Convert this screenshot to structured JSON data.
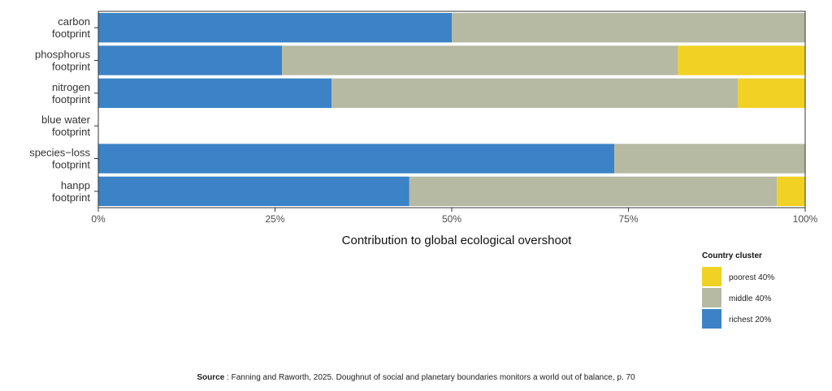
{
  "chart_data": {
    "type": "bar",
    "orientation": "horizontal",
    "stacked": true,
    "normalized": true,
    "categories": [
      [
        "carbon",
        "footprint"
      ],
      [
        "phosphorus",
        "footprint"
      ],
      [
        "nitrogen",
        "footprint"
      ],
      [
        "blue water",
        "footprint"
      ],
      [
        "species−loss",
        "footprint"
      ],
      [
        "hanpp",
        "footprint"
      ]
    ],
    "series": [
      {
        "name": "richest 20%",
        "color": "#3b83c6",
        "values": [
          50,
          26,
          33,
          0,
          73,
          44
        ]
      },
      {
        "name": "middle 40%",
        "color": "#b6baa3",
        "values": [
          50,
          56,
          57.5,
          0,
          27,
          52
        ]
      },
      {
        "name": "poorest 40%",
        "color": "#f1d124",
        "values": [
          0,
          18,
          9.5,
          0,
          0,
          4
        ]
      }
    ],
    "xlim": [
      0,
      100
    ],
    "xticks": [
      0,
      25,
      50,
      75,
      100
    ],
    "xtick_labels": [
      "0%",
      "25%",
      "50%",
      "75%",
      "100%"
    ],
    "xlabel": "Contribution to global ecological overshoot",
    "legend": {
      "title": "Country cluster",
      "position": "bottom-right",
      "order": [
        "poorest 40%",
        "middle 40%",
        "richest 20%"
      ]
    },
    "grid": false
  },
  "source": {
    "label": "Source",
    "text": " : Fanning and Raworth, 2025. Doughnut of social and planetary boundaries monitors a world out of balance, p. 70"
  }
}
